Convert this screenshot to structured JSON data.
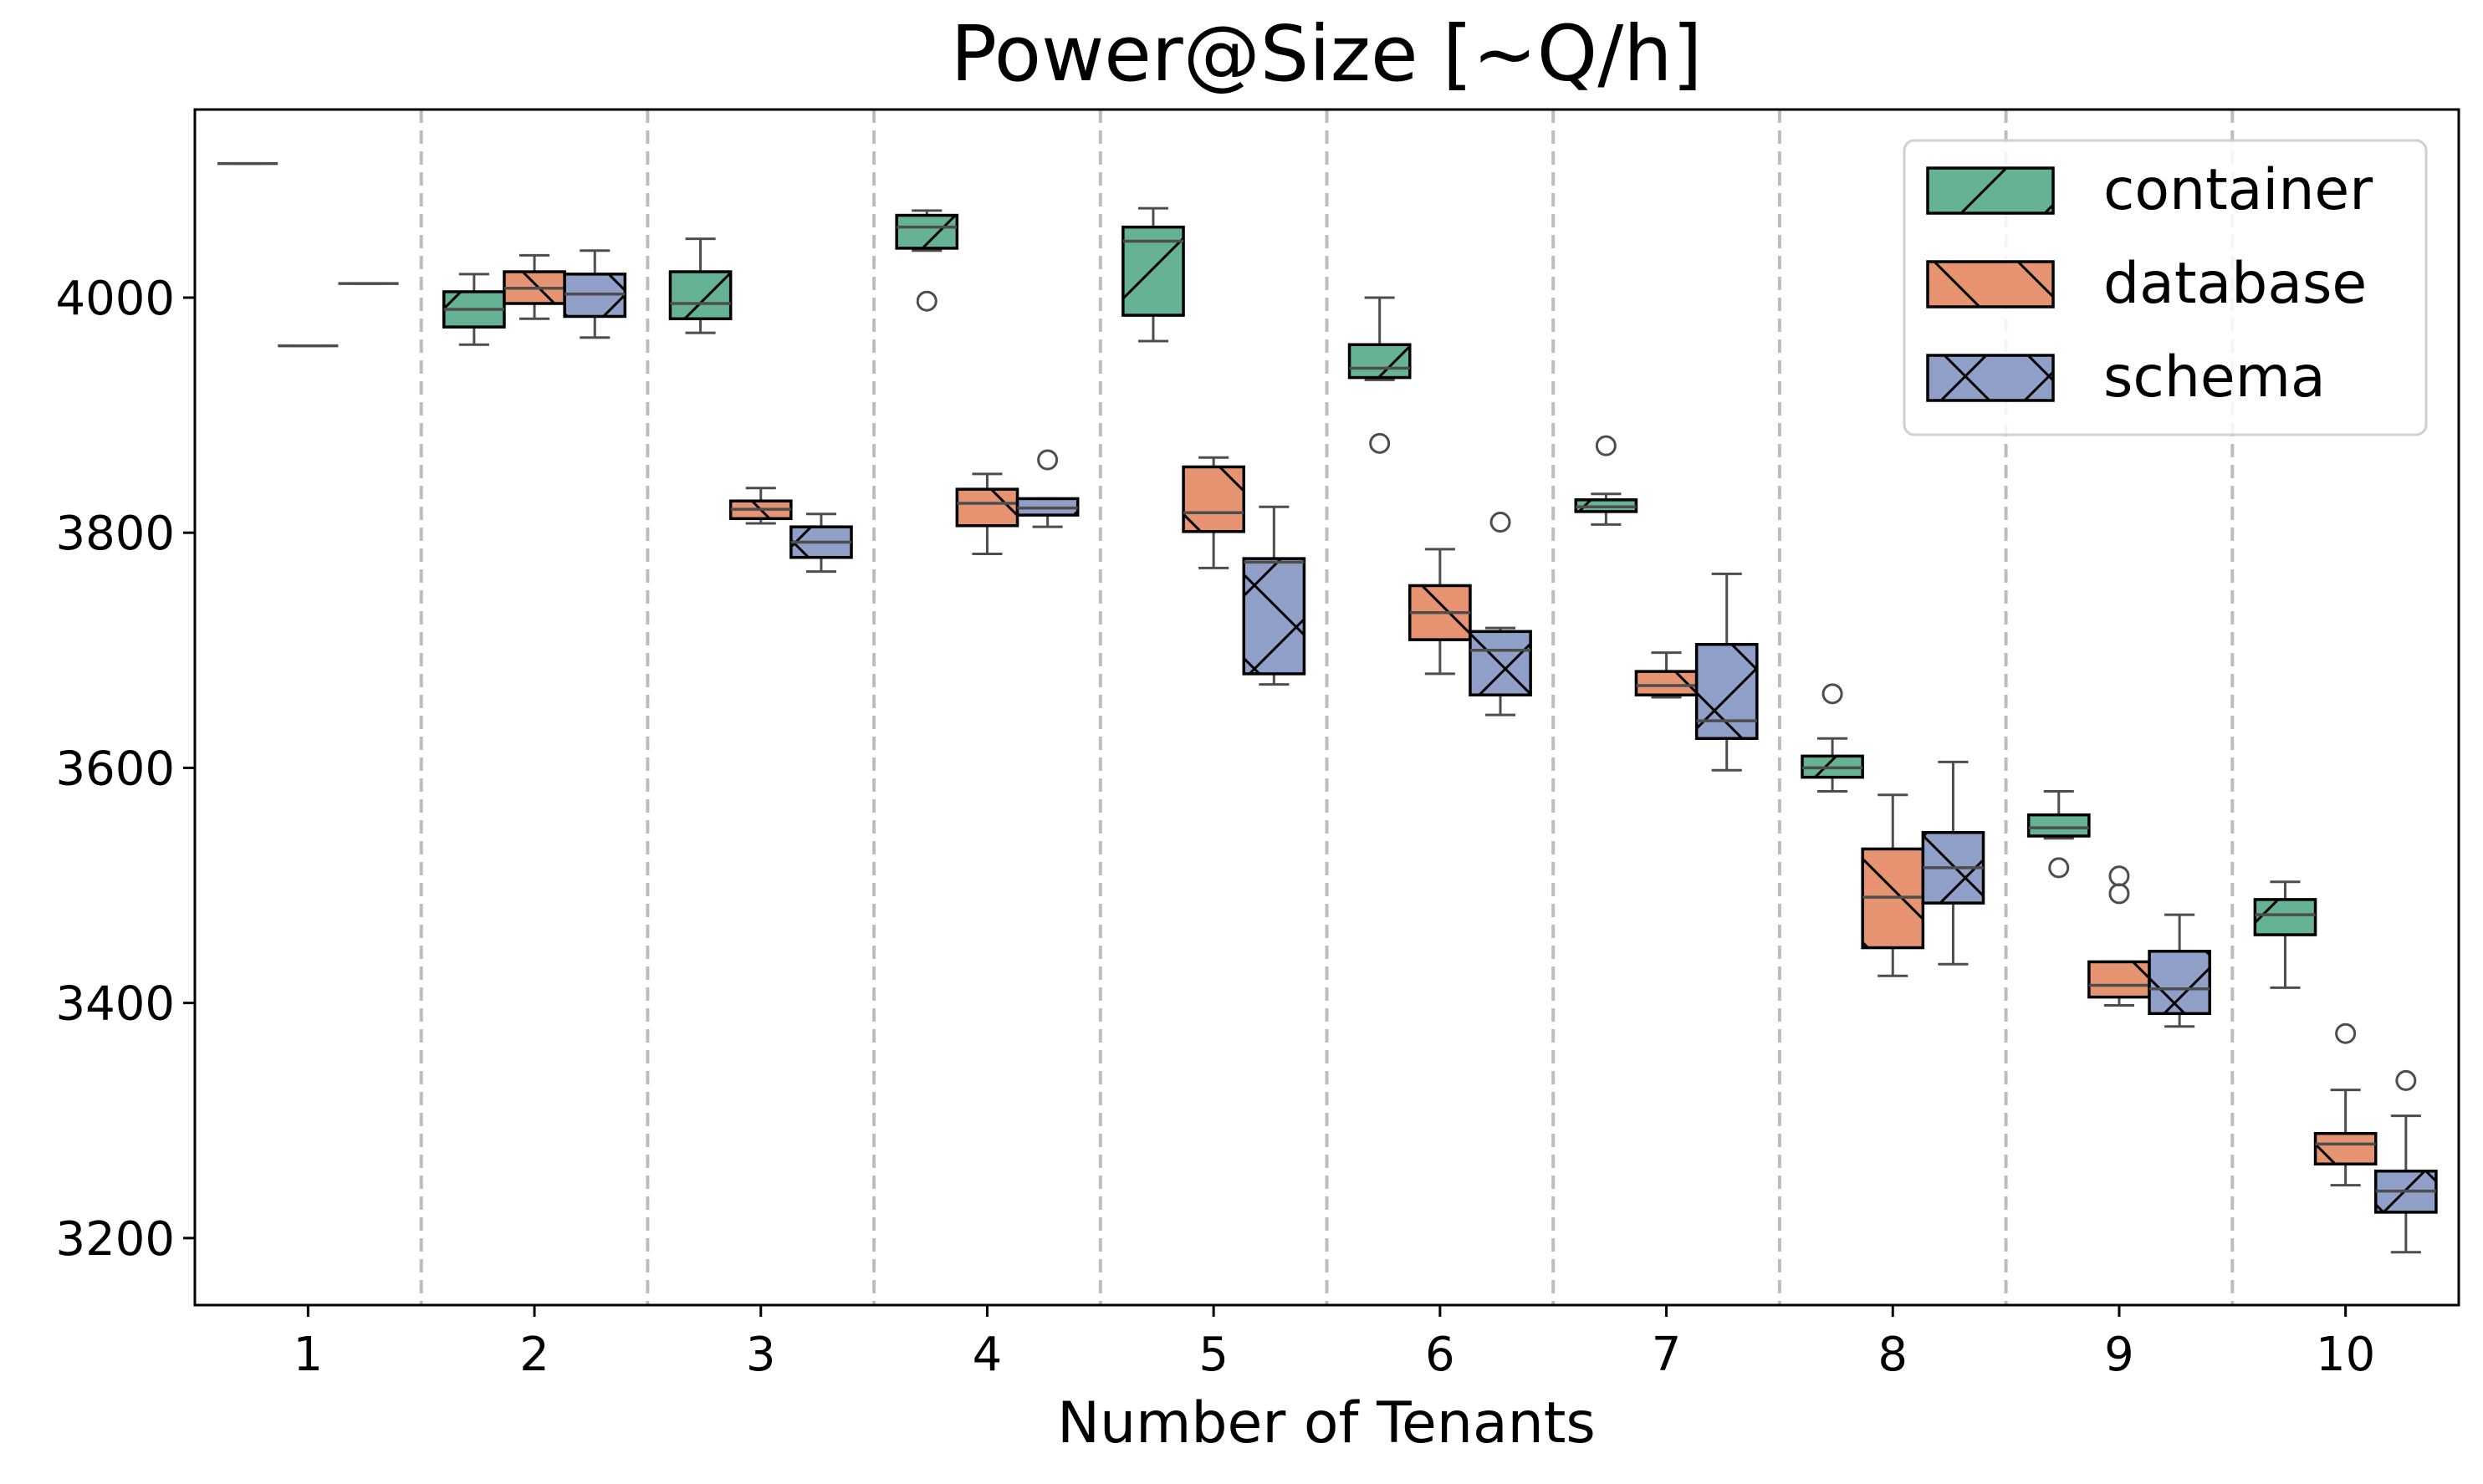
{
  "chart_data": {
    "type": "box",
    "title": "Power@Size [~Q/h]",
    "xlabel": "Number of Tenants",
    "ylabel": "",
    "categories": [
      "1",
      "2",
      "3",
      "4",
      "5",
      "6",
      "7",
      "8",
      "9",
      "10"
    ],
    "ylim": [
      3143,
      4160
    ],
    "yticks": [
      3200,
      3400,
      3600,
      3800,
      4000
    ],
    "grid": false,
    "category_separators": "dashed vertical lines between categories",
    "legend": {
      "placement": "top-right",
      "entries": [
        "container",
        "database",
        "schema"
      ]
    },
    "series": [
      {
        "name": "container",
        "color": "#66b295",
        "hatch": "/",
        "boxes": [
          {
            "median": 4114,
            "q1": 4114,
            "q3": 4114,
            "whisker_low": 4114,
            "whisker_high": 4114,
            "outliers": []
          },
          {
            "median": 3990,
            "q1": 3975,
            "q3": 4005,
            "whisker_low": 3960,
            "whisker_high": 4020,
            "outliers": []
          },
          {
            "median": 3995,
            "q1": 3982,
            "q3": 4022,
            "whisker_low": 3970,
            "whisker_high": 4050,
            "outliers": []
          },
          {
            "median": 4060,
            "q1": 4042,
            "q3": 4070,
            "whisker_low": 4040,
            "whisker_high": 4074,
            "outliers": [
              3997
            ]
          },
          {
            "median": 4048,
            "q1": 3985,
            "q3": 4060,
            "whisker_low": 3963,
            "whisker_high": 4076,
            "outliers": []
          },
          {
            "median": 3940,
            "q1": 3932,
            "q3": 3960,
            "whisker_low": 3930,
            "whisker_high": 4000,
            "outliers": [
              3876
            ]
          },
          {
            "median": 3822,
            "q1": 3818,
            "q3": 3828,
            "whisker_low": 3807,
            "whisker_high": 3833,
            "outliers": [
              3874
            ]
          },
          {
            "median": 3600,
            "q1": 3592,
            "q3": 3610,
            "whisker_low": 3580,
            "whisker_high": 3625,
            "outliers": [
              3663
            ]
          },
          {
            "median": 3549,
            "q1": 3542,
            "q3": 3560,
            "whisker_low": 3540,
            "whisker_high": 3580,
            "outliers": [
              3515
            ]
          },
          {
            "median": 3475,
            "q1": 3458,
            "q3": 3488,
            "whisker_low": 3413,
            "whisker_high": 3503,
            "outliers": []
          }
        ]
      },
      {
        "name": "database",
        "color": "#e69372",
        "hatch": "\\",
        "boxes": [
          {
            "median": 3959,
            "q1": 3959,
            "q3": 3959,
            "whisker_low": 3959,
            "whisker_high": 3959,
            "outliers": []
          },
          {
            "median": 4008,
            "q1": 3995,
            "q3": 4022,
            "whisker_low": 3982,
            "whisker_high": 4036,
            "outliers": []
          },
          {
            "median": 3820,
            "q1": 3812,
            "q3": 3827,
            "whisker_low": 3808,
            "whisker_high": 3838,
            "outliers": []
          },
          {
            "median": 3825,
            "q1": 3806,
            "q3": 3837,
            "whisker_low": 3782,
            "whisker_high": 3850,
            "outliers": []
          },
          {
            "median": 3817,
            "q1": 3801,
            "q3": 3856,
            "whisker_low": 3770,
            "whisker_high": 3864,
            "outliers": []
          },
          {
            "median": 3732,
            "q1": 3709,
            "q3": 3755,
            "whisker_low": 3680,
            "whisker_high": 3786,
            "outliers": []
          },
          {
            "median": 3670,
            "q1": 3662,
            "q3": 3682,
            "whisker_low": 3660,
            "whisker_high": 3698,
            "outliers": []
          },
          {
            "median": 3490,
            "q1": 3447,
            "q3": 3531,
            "whisker_low": 3423,
            "whisker_high": 3577,
            "outliers": []
          },
          {
            "median": 3415,
            "q1": 3405,
            "q3": 3435,
            "whisker_low": 3398,
            "whisker_high": 3435,
            "outliers": [
              3508,
              3493
            ]
          },
          {
            "median": 3280,
            "q1": 3263,
            "q3": 3289,
            "whisker_low": 3245,
            "whisker_high": 3326,
            "outliers": [
              3374
            ]
          }
        ]
      },
      {
        "name": "schema",
        "color": "#8f9fc7",
        "hatch": "x",
        "boxes": [
          {
            "median": 4012,
            "q1": 4012,
            "q3": 4012,
            "whisker_low": 4012,
            "whisker_high": 4012,
            "outliers": []
          },
          {
            "median": 4003,
            "q1": 3984,
            "q3": 4020,
            "whisker_low": 3966,
            "whisker_high": 4040,
            "outliers": []
          },
          {
            "median": 3792,
            "q1": 3779,
            "q3": 3805,
            "whisker_low": 3767,
            "whisker_high": 3816,
            "outliers": []
          },
          {
            "median": 3821,
            "q1": 3815,
            "q3": 3829,
            "whisker_low": 3805,
            "whisker_high": 3829,
            "outliers": [
              3862
            ]
          },
          {
            "median": 3775,
            "q1": 3680,
            "q3": 3778,
            "whisker_low": 3671,
            "whisker_high": 3822,
            "outliers": []
          },
          {
            "median": 3700,
            "q1": 3662,
            "q3": 3716,
            "whisker_low": 3645,
            "whisker_high": 3719,
            "outliers": [
              3809
            ]
          },
          {
            "median": 3640,
            "q1": 3625,
            "q3": 3705,
            "whisker_low": 3598,
            "whisker_high": 3765,
            "outliers": []
          },
          {
            "median": 3515,
            "q1": 3485,
            "q3": 3545,
            "whisker_low": 3433,
            "whisker_high": 3605,
            "outliers": []
          },
          {
            "median": 3412,
            "q1": 3391,
            "q3": 3444,
            "whisker_low": 3380,
            "whisker_high": 3475,
            "outliers": []
          },
          {
            "median": 3240,
            "q1": 3222,
            "q3": 3257,
            "whisker_low": 3188,
            "whisker_high": 3304,
            "outliers": [
              3334
            ]
          }
        ]
      }
    ]
  }
}
